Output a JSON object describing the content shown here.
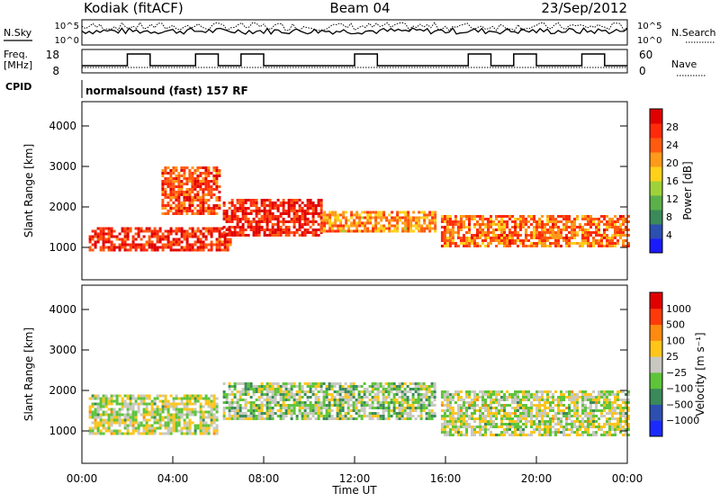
{
  "header": {
    "station": "Kodiak (fitACF)",
    "beam": "Beam 04",
    "date": "23/Sep/2012"
  },
  "aux_panels": {
    "nsky_label": "N.Sky",
    "nsearch_label": "N.Search",
    "noise_ticks_left": [
      "10^5",
      "10^0"
    ],
    "noise_ticks_right": [
      "10^5",
      "10^0"
    ],
    "freq_label_line1": "Freq.",
    "freq_label_line2": "[MHz]",
    "freq_ticks": [
      "18",
      "8"
    ],
    "nave_label": "Nave",
    "nave_ticks": [
      "60",
      "0"
    ],
    "cpid_label": "CPID",
    "cpid_text": "normalsound (fast) 157 RF"
  },
  "colors": {
    "power_scale": [
      "#1a1aff",
      "#2d4fb0",
      "#3a8a5a",
      "#5bb04a",
      "#9fd23a",
      "#ffd11a",
      "#ff9a1a",
      "#ff5a10",
      "#ff2a0a",
      "#e00000"
    ],
    "velocity_scale": [
      "#1a2aff",
      "#2d50b0",
      "#3a8a5a",
      "#5ec43a",
      "#c8c8c0",
      "#ffc51a",
      "#ff8a10",
      "#ff3a0a",
      "#e00000"
    ]
  },
  "chart_data": [
    {
      "type": "heatmap",
      "panel": "power",
      "xlabel": "",
      "ylabel": "Slant Range [km]",
      "x_ticks": [
        "00:00",
        "04:00",
        "08:00",
        "12:00",
        "16:00",
        "20:00",
        "00:00"
      ],
      "y_ticks": [
        "4000",
        "3000",
        "2000",
        "1000"
      ],
      "ylim": [
        200,
        4600
      ],
      "xlim_hours": [
        0,
        24
      ],
      "colorbar_label": "Power [dB]",
      "colorbar_ticks": [
        "28",
        "24",
        "20",
        "16",
        "12",
        "8",
        "4"
      ],
      "range_min": 0,
      "range_max": 30,
      "bands": [
        {
          "t_start": 0.3,
          "t_end": 6.5,
          "range_lo": 900,
          "range_hi": 1500,
          "level": 26
        },
        {
          "t_start": 6.2,
          "t_end": 10.5,
          "range_lo": 1300,
          "range_hi": 2200,
          "level": 27
        },
        {
          "t_start": 10.5,
          "t_end": 15.5,
          "range_lo": 1400,
          "range_hi": 1900,
          "level": 20
        },
        {
          "t_start": 15.8,
          "t_end": 24,
          "range_lo": 1000,
          "range_hi": 1800,
          "level": 22
        },
        {
          "t_start": 3.5,
          "t_end": 6.0,
          "range_lo": 1800,
          "range_hi": 3000,
          "level": 24
        }
      ]
    },
    {
      "type": "heatmap",
      "panel": "velocity",
      "xlabel": "Time UT",
      "ylabel": "Slant Range [km]",
      "x_ticks": [
        "00:00",
        "04:00",
        "08:00",
        "12:00",
        "16:00",
        "20:00",
        "00:00"
      ],
      "y_ticks": [
        "4000",
        "3000",
        "2000",
        "1000"
      ],
      "ylim": [
        200,
        4600
      ],
      "xlim_hours": [
        0,
        24
      ],
      "colorbar_label": "Velocity [m s⁻¹]",
      "colorbar_ticks": [
        "1000",
        "500",
        "100",
        "25",
        "−25",
        "−100",
        "−500",
        "−1000"
      ],
      "range_min": -1200,
      "range_max": 1200,
      "bands": [
        {
          "t_start": 0.3,
          "t_end": 6.0,
          "range_lo": 900,
          "range_hi": 1900,
          "level": 0
        },
        {
          "t_start": 6.2,
          "t_end": 15.5,
          "range_lo": 1300,
          "range_hi": 2200,
          "level": -150
        },
        {
          "t_start": 15.8,
          "t_end": 24,
          "range_lo": 900,
          "range_hi": 2000,
          "level": 0
        }
      ]
    }
  ]
}
